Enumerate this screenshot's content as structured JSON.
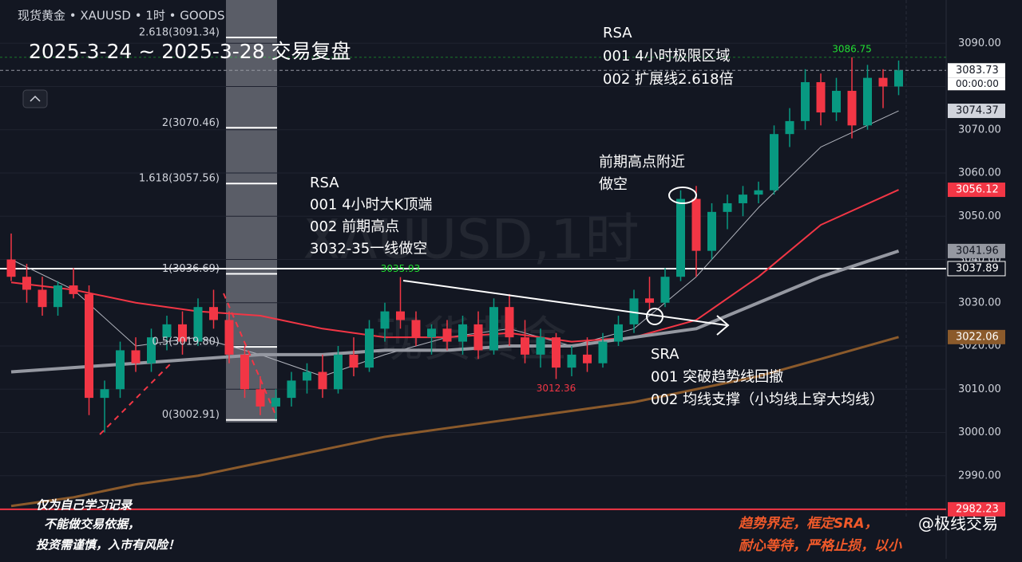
{
  "header": "现货黄金 • XAUUSD • 1时 • GOODS",
  "chart_data": {
    "type": "candlestick",
    "title": "2025-3-24 ~ 2025-3-28 交易复盘",
    "watermark": [
      "XAUUSD,1时",
      "现货黄金"
    ],
    "ylim": [
      2980,
      3100
    ],
    "yticks": [
      {
        "value": 2990,
        "label": "2990.00"
      },
      {
        "value": 3000,
        "label": "3000.00"
      },
      {
        "value": 3010,
        "label": "3010.00"
      },
      {
        "value": 3020,
        "label": "3020.00"
      },
      {
        "value": 3030,
        "label": "3030.00"
      },
      {
        "value": 3040,
        "label": "3040.00"
      },
      {
        "value": 3050,
        "label": "3050.00"
      },
      {
        "value": 3060,
        "label": "3060.00"
      },
      {
        "value": 3070,
        "label": "3070.00"
      },
      {
        "value": 3080,
        "label": "3080.00"
      },
      {
        "value": 3090,
        "label": "3090.00"
      }
    ],
    "grid": true,
    "up_color": "#089981",
    "down_color": "#f23645",
    "open": [
      3040,
      3036,
      3033,
      3029,
      3034,
      3032,
      3008,
      3010,
      3019,
      3016,
      3022,
      3025,
      3021,
      3029,
      3026,
      3018,
      3010,
      3006,
      3008,
      3012,
      3014,
      3010,
      3018,
      3015,
      3024,
      3028,
      3026,
      3022,
      3024,
      3021,
      3025,
      3019,
      3029,
      3022,
      3018,
      3022,
      3015,
      3018,
      3016,
      3021,
      3025,
      3031,
      3030,
      3036,
      3054,
      3042,
      3051,
      3053,
      3055,
      3056,
      3069,
      3072,
      3081,
      3074,
      3079,
      3071,
      3082,
      3080
    ],
    "high": [
      3046,
      3039,
      3036,
      3035,
      3038,
      3034,
      3012,
      3021,
      3022,
      3024,
      3027,
      3028,
      3031,
      3033,
      3028,
      3020,
      3013,
      3010,
      3014,
      3016,
      3018,
      3020,
      3022,
      3026,
      3030,
      3035.93,
      3028,
      3025,
      3026,
      3027,
      3028,
      3031,
      3032,
      3026,
      3024,
      3023,
      3020,
      3022,
      3023,
      3027,
      3033,
      3036,
      3038,
      3056,
      3057,
      3053,
      3055,
      3057,
      3058,
      3071,
      3075,
      3084,
      3083,
      3082,
      3086.75,
      3085,
      3084,
      3086
    ],
    "low": [
      3035,
      3030,
      3027,
      3027,
      3031,
      3004,
      3000,
      3008,
      3014,
      3014,
      3019,
      3018,
      3020,
      3024,
      3016,
      3008,
      3004,
      3003,
      3006,
      3009,
      3008,
      3009,
      3013,
      3014,
      3021,
      3024,
      3020,
      3018,
      3019,
      3018,
      3017,
      3018,
      3020,
      3016,
      3015,
      3012.36,
      3013,
      3014,
      3015,
      3020,
      3023,
      3028,
      3029,
      3035,
      3036,
      3040,
      3047,
      3050,
      3053,
      3055,
      3066,
      3070,
      3071,
      3072,
      3068,
      3070,
      3075,
      3078
    ],
    "close": [
      3036,
      3033,
      3029,
      3034,
      3032,
      3008,
      3010,
      3019,
      3016,
      3022,
      3025,
      3021,
      3029,
      3026,
      3018,
      3010,
      3006,
      3008,
      3012,
      3014,
      3010,
      3018,
      3015,
      3024,
      3028,
      3026,
      3022,
      3024,
      3021,
      3025,
      3019,
      3029,
      3022,
      3018,
      3022,
      3015,
      3018,
      3016,
      3021,
      3025,
      3031,
      3030,
      3036,
      3054,
      3042,
      3051,
      3053,
      3055,
      3056,
      3069,
      3072,
      3081,
      3074,
      3079,
      3071,
      3082,
      3080,
      3083.73
    ],
    "moving_averages": {
      "x": [
        0,
        4,
        8,
        12,
        16,
        20,
        24,
        28,
        32,
        36,
        40,
        44,
        48,
        52,
        57
      ],
      "series": [
        {
          "color": "#b2b5be",
          "width": 1,
          "values": [
            3040,
            3033,
            3020,
            3022,
            3018,
            3013,
            3018,
            3022,
            3024,
            3020,
            3024,
            3036,
            3052,
            3066,
            3074.37
          ]
        },
        {
          "color": "#f23645",
          "width": 2,
          "values": [
            3034.7,
            3033,
            3030,
            3028,
            3027,
            3024,
            3022,
            3022,
            3023,
            3021,
            3022,
            3026,
            3036,
            3048,
            3056.12
          ]
        },
        {
          "color": "#9598a1",
          "width": 4,
          "values": [
            3014,
            3015,
            3016,
            3017,
            3018,
            3018,
            3019,
            3019,
            3020,
            3020,
            3022,
            3024,
            3030,
            3036,
            3041.96
          ]
        },
        {
          "color": "#8b5a2b",
          "width": 3,
          "values": [
            2983,
            2985,
            2988,
            2990,
            2993,
            2996,
            2999,
            3001,
            3003,
            3005,
            3007,
            3010,
            3013,
            3017,
            3022.06
          ]
        }
      ]
    },
    "price_labels": [
      {
        "value": 3083.73,
        "background": "#ffffff",
        "text_color": "#131722",
        "line": "dashed"
      },
      {
        "value": 3074.37,
        "background": "#d1d4dc",
        "text_color": "#131722"
      },
      {
        "value": 3056.12,
        "background": "#f23645",
        "text_color": "#ffffff"
      },
      {
        "value": 3041.96,
        "background": "#9598a1",
        "text_color": "#131722"
      },
      {
        "value": 3037.89,
        "background": "#131722",
        "text_color": "#ffffff",
        "line": "solid"
      },
      {
        "value": 3022.06,
        "background": "#8b5a2b",
        "text_color": "#ffffff"
      },
      {
        "value": 2982.23,
        "background": "#f23645",
        "text_color": "#ffffff",
        "line": "solid"
      }
    ],
    "countdown": "00:00:00",
    "fib_levels": [
      {
        "label": "2.618(3091.34)",
        "value": 3091.34
      },
      {
        "label": "2(3070.46)",
        "value": 3070.46
      },
      {
        "label": "1.618(3057.56)",
        "value": 3057.56
      },
      {
        "label": "1(3036.69)",
        "value": 3036.69
      },
      {
        "label": "0.5(3019.80)",
        "value": 3019.8
      },
      {
        "label": "0(3002.91)",
        "value": 3002.91
      }
    ],
    "annotations": [
      [
        "RSA",
        "001 4小时大K顶端",
        "002 前期高点",
        "3032-35一线做空"
      ],
      [
        "RSA",
        "001 4小时极限区域",
        "002 扩展线2.618倍"
      ],
      [
        "前期高点附近",
        "做空"
      ],
      [
        "SRA",
        "001 突破趋势线回撤",
        "002 均线支撑（小均线上穿大均线）"
      ]
    ]
  },
  "disclaimer": [
    "仅为自己学习记录",
    "不能做交易依据，",
    "投资需谨慎，入市有风险！"
  ],
  "slogan": [
    "趋势界定，框定SRA，",
    "耐心等待，严格止损，以小"
  ],
  "brand": "@极线交易"
}
